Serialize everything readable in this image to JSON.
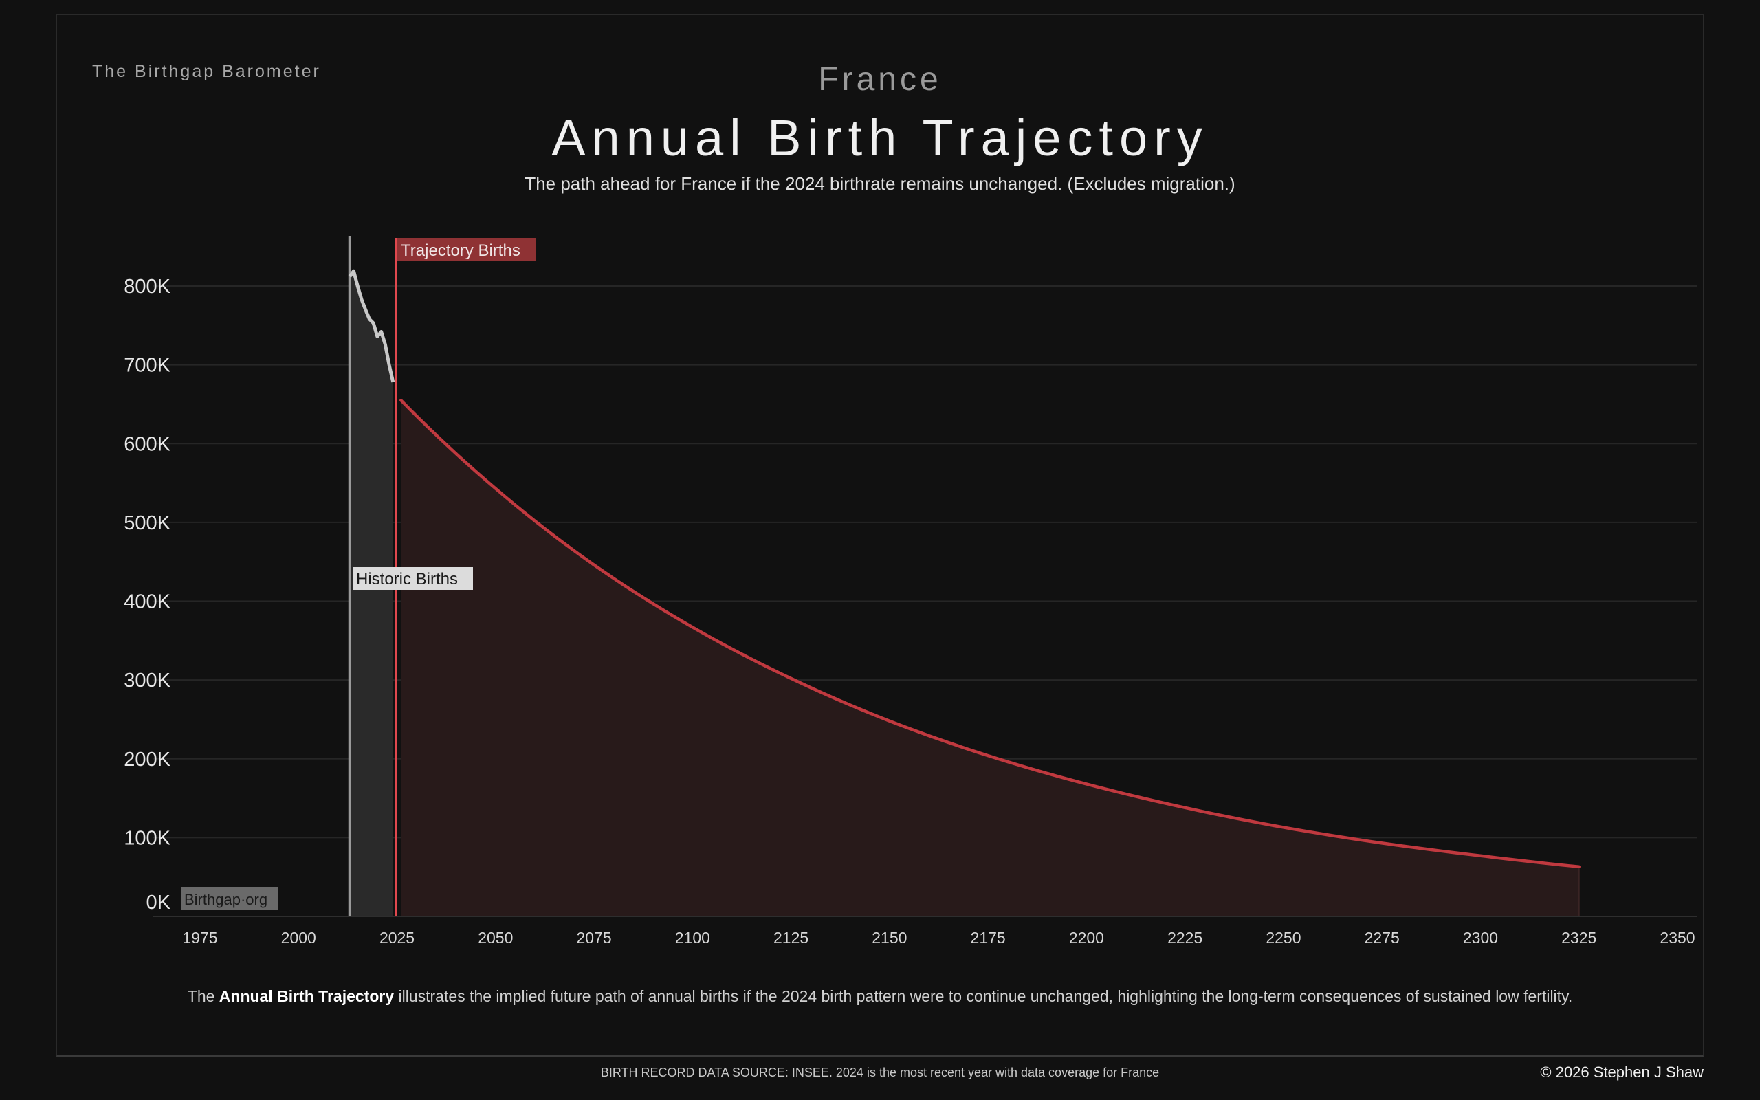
{
  "brand": "The Birthgap Barometer",
  "country": "France",
  "title": "Annual Birth Trajectory",
  "subtitle": "The path ahead for France if the 2024 birthrate remains unchanged.  (Excludes migration.)",
  "footnote": {
    "pre": "The ",
    "bold": "Annual Birth Trajectory",
    "post": " illustrates the implied future path of annual births if the 2024 birth pattern were to continue unchanged, highlighting the long-term consequences of sustained low fertility."
  },
  "source": "BIRTH RECORD DATA SOURCE: INSEE. 2024 is the most recent year with data coverage for France",
  "copyright": "© 2026 Stephen J Shaw",
  "watermark": "Birthgap·org",
  "colors": {
    "trajectory": "#c0393f",
    "trajectory_fill": "#281a1a",
    "historic": "#c8c8c8",
    "historic_fill": "#2a2a2a",
    "label_red": "#8f3234",
    "label_gray": "#dcdcdc"
  },
  "chart_data": {
    "type": "line",
    "title": "Annual Birth Trajectory",
    "xlabel": "",
    "ylabel": "",
    "xlim": [
      1975,
      2350
    ],
    "ylim": [
      0,
      860000
    ],
    "x_ticks": [
      "1975",
      "2000",
      "2025",
      "2050",
      "2075",
      "2100",
      "2125",
      "2150",
      "2175",
      "2200",
      "2225",
      "2250",
      "2275",
      "2300",
      "2325",
      "2350"
    ],
    "y_ticks": [
      {
        "v": 0,
        "label": "0K"
      },
      {
        "v": 100000,
        "label": "100K"
      },
      {
        "v": 200000,
        "label": "200K"
      },
      {
        "v": 300000,
        "label": "300K"
      },
      {
        "v": 400000,
        "label": "400K"
      },
      {
        "v": 500000,
        "label": "500K"
      },
      {
        "v": 600000,
        "label": "600K"
      },
      {
        "v": 700000,
        "label": "700K"
      },
      {
        "v": 800000,
        "label": "800K"
      }
    ],
    "grid": true,
    "series": [
      {
        "name": "Historic Births",
        "x": [
          2013,
          2014,
          2015,
          2016,
          2017,
          2018,
          2019,
          2020,
          2021,
          2022,
          2023,
          2024
        ],
        "y": [
          812000,
          819000,
          800000,
          783000,
          770000,
          758000,
          753000,
          736000,
          742000,
          726000,
          700000,
          678000
        ]
      },
      {
        "name": "Trajectory Births",
        "x": [
          2026,
          2050,
          2075,
          2100,
          2125,
          2150,
          2175,
          2200,
          2225,
          2250,
          2275,
          2300,
          2325
        ],
        "y": [
          655000,
          543000,
          446000,
          367000,
          302000,
          248000,
          204000,
          168000,
          138000,
          113000,
          93000,
          77000,
          63000
        ]
      }
    ],
    "annotations": [
      "Historic Births",
      "Trajectory Births"
    ]
  }
}
